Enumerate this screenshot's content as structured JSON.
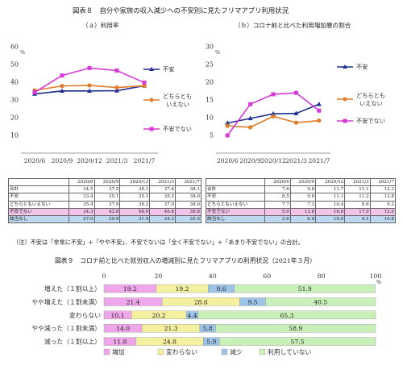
{
  "figure8": {
    "title": "図表８　自分や家族の収入減少への不安別に見たフリマアプリ利用状況",
    "panel_a_title": "（ａ）利用率",
    "panel_b_title": "（ｂ）コロナ前と比べた利用増加層の割合",
    "note": "（注）不安は「非常に不安」+「やや不安」、不安でないは「全く不安でない」+「あまり不安でない」の合計。"
  },
  "figure9": {
    "title": "図表９　コロナ前と比べた就労収入の増減別に見たフリマアプリの利用状況（2021年３月）"
  },
  "colors": {
    "navy": "#1f2f8f",
    "orange": "#e07b2a",
    "magenta": "#d63ad6",
    "pink": "#f0a6ea",
    "yellow": "#f3f0a0",
    "blue": "#9dc3e6",
    "green": "#c8f0b8"
  },
  "chart_data": [
    {
      "type": "line",
      "title": "（ａ）利用率",
      "ylabel": "%",
      "x": [
        "2020/6",
        "2020/9",
        "2020/12",
        "2021/3",
        "2021/7"
      ],
      "ylim": [
        0,
        60
      ],
      "yticks": [
        0,
        10,
        20,
        30,
        40,
        50,
        60
      ],
      "series": [
        {
          "name": "不安",
          "color": "#1f2f8f",
          "marker": "triangle",
          "values": [
            33.4,
            35.1,
            35.1,
            35.2,
            38.0
          ]
        },
        {
          "name": "どちらともいえない",
          "color": "#e07b2a",
          "marker": "circle",
          "values": [
            35.4,
            37.9,
            38.2,
            37.0,
            38.0
          ]
        },
        {
          "name": "不安でない",
          "color": "#d63ad6",
          "marker": "square",
          "values": [
            34.3,
            43.8,
            48.0,
            46.6,
            39.8
          ]
        }
      ],
      "table": {
        "columns": [
          "",
          "2020/6",
          "2020/9",
          "2020/12",
          "2021/3",
          "2021/7"
        ],
        "rows": [
          {
            "label": "合計",
            "values": [
              "34.5",
              "37.5",
              "38.1",
              "37.6",
              "38.1"
            ]
          },
          {
            "label": "不安",
            "values": [
              "33.4",
              "35.1",
              "35.1",
              "35.2",
              "38.0"
            ]
          },
          {
            "label": "どちらともいえない",
            "values": [
              "35.4",
              "37.9",
              "38.2",
              "37.0",
              "38.0"
            ]
          },
          {
            "label": "不安でない",
            "values": [
              "34.3",
              "43.8",
              "48.0",
              "46.6",
              "39.8"
            ]
          },
          {
            "label": "該当なし",
            "values": [
              "27.0",
              "29.9",
              "31.4",
              "24.3",
              "35.5"
            ]
          }
        ]
      }
    },
    {
      "type": "line",
      "title": "（ｂ）コロナ前と比べた利用増加層の割合",
      "ylabel": "%",
      "x": [
        "2020/6",
        "2020/9",
        "2020/12",
        "2021/3",
        "2021/7"
      ],
      "ylim": [
        0,
        30
      ],
      "yticks": [
        0,
        5,
        10,
        15,
        20,
        25,
        30
      ],
      "series": [
        {
          "name": "不安",
          "color": "#1f2f8f",
          "marker": "triangle",
          "values": [
            8.5,
            9.8,
            11.1,
            11.2,
            13.8
          ]
        },
        {
          "name": "どちらともいえない",
          "color": "#e07b2a",
          "marker": "circle",
          "values": [
            7.7,
            7.3,
            10.4,
            8.6,
            9.2
          ]
        },
        {
          "name": "不安でない",
          "color": "#d63ad6",
          "marker": "square",
          "values": [
            5.0,
            13.8,
            16.6,
            17.0,
            12.0
          ]
        }
      ],
      "table": {
        "columns": [
          "",
          "2020/6",
          "2020/9",
          "2020/12",
          "2021/3",
          "2021/7"
        ],
        "rows": [
          {
            "label": "合計",
            "values": [
              "7.6",
              "9.8",
              "11.7",
              "11.1",
              "12.3"
            ]
          },
          {
            "label": "不安",
            "values": [
              "8.5",
              "9.8",
              "11.1",
              "11.2",
              "13.8"
            ]
          },
          {
            "label": "どちらともいえない",
            "values": [
              "7.7",
              "7.3",
              "10.4",
              "8.6",
              "9.2"
            ]
          },
          {
            "label": "不安でない",
            "values": [
              "5.0",
              "13.8",
              "16.6",
              "17.0",
              "12.0"
            ]
          },
          {
            "label": "該当なし",
            "values": [
              "3.6",
              "6.9",
              "10.0",
              "4.1",
              "10.8"
            ]
          }
        ]
      }
    },
    {
      "type": "bar",
      "orientation": "horizontal-stacked",
      "title": "図表９　コロナ前と比べた就労収入の増減別に見たフリマアプリの利用状況（2021年３月）",
      "xlabel": "%",
      "xlim": [
        0,
        100
      ],
      "xticks": [
        0,
        20,
        40,
        60,
        80,
        100
      ],
      "categories": [
        "増えた（１割以上）",
        "やや増えた（１割未満）",
        "変わらない",
        "やや減った（１割未満）",
        "減った（１割以上）"
      ],
      "series": [
        {
          "name": "増加",
          "color": "#f0a6ea",
          "values": [
            19.2,
            21.4,
            10.1,
            14.0,
            11.8
          ]
        },
        {
          "name": "変わらない",
          "color": "#f3f0a0",
          "values": [
            19.2,
            28.6,
            20.2,
            21.3,
            24.8
          ]
        },
        {
          "name": "減少",
          "color": "#9dc3e6",
          "values": [
            9.6,
            9.5,
            4.4,
            5.8,
            5.9
          ]
        },
        {
          "name": "利用していない",
          "color": "#c8f0b8",
          "values": [
            51.9,
            40.5,
            65.3,
            58.9,
            57.5
          ]
        }
      ],
      "legend_position": "bottom"
    }
  ]
}
